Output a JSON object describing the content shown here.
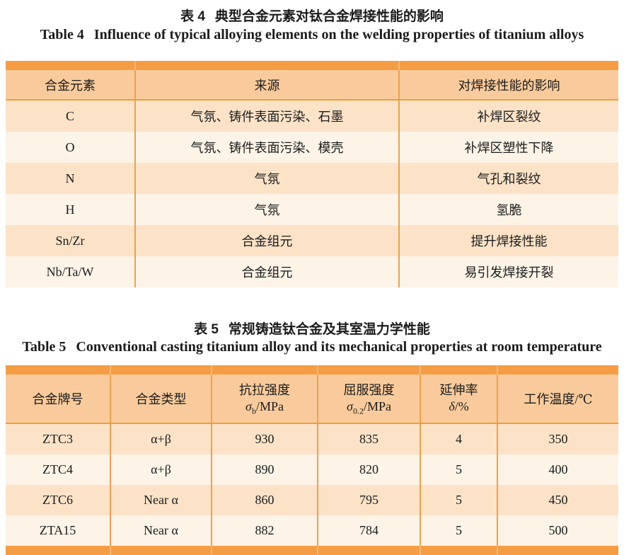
{
  "colors": {
    "bar_orange": "#F49D44",
    "header_bg": "#F9CB9C",
    "header_line": "#EE9D3E",
    "divider_orange": "#F0A04C",
    "row_peach": "#FCE3C8",
    "row_cream": "#FDF3E7",
    "text": "#1B1B1B"
  },
  "table4": {
    "title_zh_label": "表 4",
    "title_zh_text": "典型合金元素对钛合金焊接性能的影响",
    "title_en_label": "Table 4",
    "title_en_text": "Influence of typical alloying elements on the welding properties of titanium alloys",
    "headers": [
      "合金元素",
      "来源",
      "对焊接性能的影响"
    ],
    "rows": [
      [
        "C",
        "气氛、铸件表面污染、石墨",
        "补焊区裂纹"
      ],
      [
        "O",
        "气氛、铸件表面污染、模壳",
        "补焊区塑性下降"
      ],
      [
        "N",
        "气氛",
        "气孔和裂纹"
      ],
      [
        "H",
        "气氛",
        "氢脆"
      ],
      [
        "Sn/Zr",
        "合金组元",
        "提升焊接性能"
      ],
      [
        "Nb/Ta/W",
        "合金组元",
        "易引发焊接开裂"
      ]
    ]
  },
  "table5": {
    "title_zh_label": "表 5",
    "title_zh_text": "常规铸造钛合金及其室温力学性能",
    "title_en_label": "Table 5",
    "title_en_text": "Conventional casting titanium alloy and its mechanical properties at room temperature",
    "headers": {
      "alloy_grade": "合金牌号",
      "alloy_type": "合金类型",
      "tensile": {
        "line1": "抗拉强度",
        "sym": "σ",
        "sub": "b",
        "unit": "/MPa"
      },
      "yield": {
        "line1": "屈服强度",
        "sym": "σ",
        "sub": "0.2",
        "unit": "/MPa"
      },
      "elongation": {
        "line1": "延伸率",
        "sym": "δ",
        "sub": "",
        "unit": "/%"
      },
      "work_temp": "工作温度/℃"
    },
    "rows": [
      [
        "ZTC3",
        "α+β",
        "930",
        "835",
        "4",
        "350"
      ],
      [
        "ZTC4",
        "α+β",
        "890",
        "820",
        "5",
        "400"
      ],
      [
        "ZTC6",
        "Near α",
        "860",
        "795",
        "5",
        "450"
      ],
      [
        "ZTA15",
        "Near α",
        "882",
        "784",
        "5",
        "500"
      ]
    ]
  }
}
